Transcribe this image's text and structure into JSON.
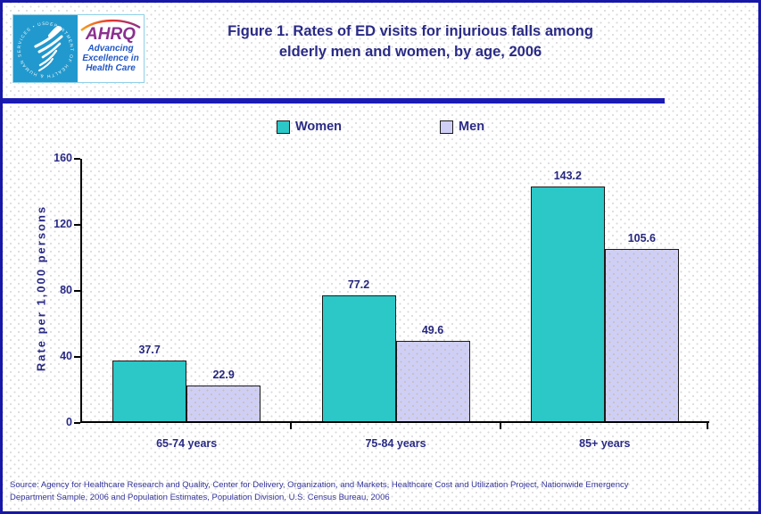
{
  "header": {
    "logo": {
      "seal_text": "DEPARTMENT OF HEALTH & HUMAN SERVICES • USA",
      "ahrq_acronym": "AHRQ",
      "tagline_line1": "Advancing",
      "tagline_line2": "Excellence in",
      "tagline_line3": "Health Care"
    },
    "title_line1": "Figure 1. Rates of ED visits for injurious falls among",
    "title_line2": "elderly men and women, by age, 2006"
  },
  "chart_data": {
    "type": "bar",
    "title": "Figure 1. Rates of ED visits for injurious falls among elderly men and women, by age, 2006",
    "categories": [
      "65-74 years",
      "75-84 years",
      "85+ years"
    ],
    "series": [
      {
        "name": "Women",
        "color": "#2CC7C7",
        "values": [
          37.7,
          77.2,
          143.2
        ]
      },
      {
        "name": "Men",
        "color": "#CFCFF6",
        "values": [
          22.9,
          49.6,
          105.6
        ]
      }
    ],
    "xlabel": "",
    "ylabel": "Rate per 1,000 persons",
    "ylim": [
      0,
      160
    ],
    "yticks": [
      0,
      40,
      80,
      120,
      160
    ],
    "grid": false,
    "legend_position": "top-center",
    "bar_value_labels": true
  },
  "colors": {
    "navy_text": "#2A2A86",
    "divider_blue": "#1C1CB4",
    "outer_border_blue": "#1717A8",
    "women_teal": "#2CC7C7",
    "men_lavender": "#CFCFF6",
    "hhs_cyan": "#2199CE",
    "ahrq_purple": "#8B2F8F",
    "tagline_blue": "#2157C4",
    "source_blue": "#33339A"
  },
  "footer": {
    "source_line1": "Source: Agency for Healthcare Research and Quality, Center for Delivery, Organization, and Markets, Healthcare Cost and Utilization Project, Nationwide Emergency",
    "source_line2": "Department Sample, 2006 and Population Estimates, Population Division, U.S. Census Bureau, 2006"
  }
}
